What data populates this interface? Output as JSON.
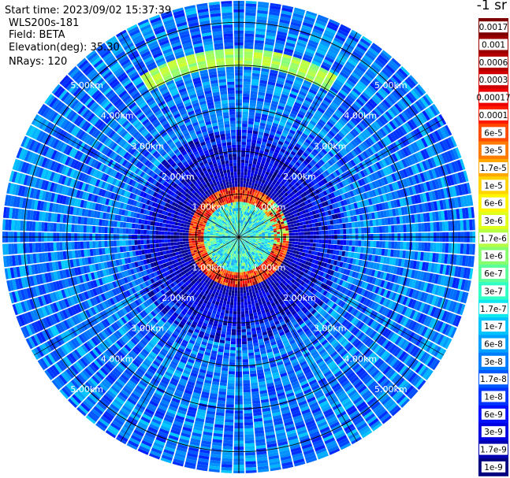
{
  "header": {
    "start_time": "Start time: 2023/09/02 15:37:39",
    "instrument": "WLS200s-181",
    "field": "Field: BETA",
    "elevation": "Elevation(deg): 35.30",
    "nrays": "NRays: 120"
  },
  "colorbar": {
    "unit_label": "-1 sr",
    "ticks": [
      "0.0017",
      "0.001",
      "0.0006",
      "0.0003",
      "0.00017",
      "0.0001",
      "6e-5",
      "3e-5",
      "1.7e-5",
      "1e-5",
      "6e-6",
      "3e-6",
      "1.7e-6",
      "1e-6",
      "6e-7",
      "3e-7",
      "1.7e-7",
      "1e-7",
      "6e-8",
      "3e-8",
      "1.7e-8",
      "1e-8",
      "6e-9",
      "3e-9",
      "1.7e-9",
      "1e-9"
    ],
    "colors": [
      "#7f0000",
      "#9a0000",
      "#b40000",
      "#d00000",
      "#ec0000",
      "#ff1a00",
      "#ff4a00",
      "#ff7a00",
      "#ffa800",
      "#ffd400",
      "#fff500",
      "#e0ff1c",
      "#b4ff44",
      "#88ff6e",
      "#5cff9a",
      "#30ffc6",
      "#10e8f0",
      "#00c4ff",
      "#00a0ff",
      "#007cff",
      "#0058ff",
      "#0034ff",
      "#0010ff",
      "#0000e0",
      "#0000b0",
      "#000080"
    ]
  },
  "chart_data": {
    "type": "polar-ppi",
    "title": "",
    "field": "BETA",
    "n_rays": 120,
    "elevation_deg": 35.3,
    "range_max_km": 5.5,
    "range_rings_km": [
      1,
      2,
      3,
      4,
      5
    ],
    "range_labels": [
      "1.00km",
      "2.00km",
      "3.00km",
      "4.00km",
      "5.00km"
    ],
    "range_label_bearings_deg": [
      45,
      135,
      225,
      315
    ],
    "color_scale": "log",
    "color_range": [
      1e-09,
      0.0017
    ],
    "features": [
      {
        "name": "aerosol_ring",
        "range_km": [
          0.8,
          1.15
        ],
        "beta": [
          0.0001,
          0.0017
        ]
      },
      {
        "name": "near_field",
        "range_km": [
          0.0,
          0.8
        ],
        "beta": [
          1e-07,
          6e-06
        ]
      },
      {
        "name": "inner_weak_zone",
        "range_km": [
          1.2,
          2.5
        ],
        "beta": [
          1e-09,
          1e-07
        ]
      },
      {
        "name": "north_arc",
        "range_km": [
          4.0,
          4.4
        ],
        "azimuth_deg": [
          330,
          30
        ],
        "beta": [
          3e-06,
          1e-05
        ]
      },
      {
        "name": "background",
        "range_km": [
          2.5,
          5.5
        ],
        "beta": [
          1e-08,
          3e-07
        ]
      }
    ]
  }
}
